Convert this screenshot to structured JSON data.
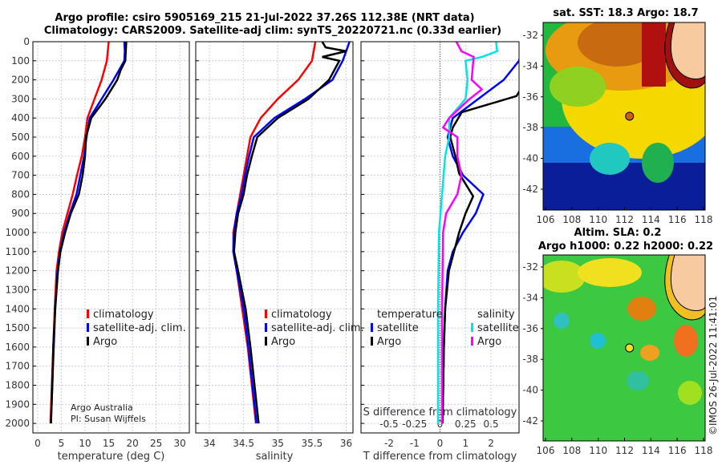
{
  "titles": {
    "line1": "Argo profile: csiro 5905169_215 21-Jul-2022 37.26S 112.38E (NRT data)",
    "line2": "Climatology: CARS2009. Satellite-adj clim: synTS_20220721.nc (0.33d earlier)",
    "sst": "sat. SST: 18.3 Argo: 18.7",
    "sla1": "Altim. SLA: 0.2",
    "sla2": "Argo h1000: 0.22 h2000: 0.22"
  },
  "credit": "Argo Australia",
  "pi": "PI: Susan Wijffels",
  "stamp": "©IMOS 26-Jul-2022 11:41:01",
  "colors": {
    "climatology": "#ff0000",
    "satellite": "#0000ff",
    "argo": "#000000",
    "s_satellite": "#00e5e5",
    "s_argo": "#ff00ff"
  },
  "chart_data": [
    {
      "type": "line",
      "xlabel": "temperature (deg C)",
      "ylabel": "",
      "xlim": [
        -1,
        32
      ],
      "ylim": [
        2050,
        0
      ],
      "xticks": [
        0,
        5,
        10,
        15,
        20,
        25,
        30
      ],
      "yticks": [
        0,
        100,
        200,
        300,
        400,
        500,
        600,
        700,
        800,
        900,
        1000,
        1100,
        1200,
        1300,
        1400,
        1500,
        1600,
        1700,
        1800,
        1900,
        2000
      ],
      "legend": [
        "climatology",
        "satellite-adj. clim.",
        "Argo"
      ],
      "legend_placement": "lower-right",
      "series": [
        {
          "name": "climatology",
          "depth": [
            0,
            100,
            200,
            300,
            400,
            500,
            600,
            700,
            800,
            900,
            1000,
            1100,
            1200,
            1400,
            1600,
            1800,
            2000
          ],
          "values": [
            15,
            14.6,
            13.5,
            12,
            10.5,
            10,
            9.3,
            8.3,
            7.4,
            6.3,
            5.2,
            4.5,
            4,
            3.6,
            3.3,
            3,
            2.7
          ]
        },
        {
          "name": "satellite-adj. clim.",
          "depth": [
            0,
            50,
            100,
            200,
            300,
            400,
            500,
            600,
            700,
            800,
            900,
            1000,
            1100,
            1200,
            1400,
            1600,
            1800,
            2000
          ],
          "values": [
            18.3,
            18.4,
            18.3,
            16,
            13.5,
            11,
            10.3,
            9.8,
            9,
            8.2,
            6.8,
            5.6,
            4.7,
            4.2,
            3.7,
            3.4,
            3.1,
            2.8
          ]
        },
        {
          "name": "Argo",
          "depth": [
            0,
            100,
            150,
            200,
            300,
            400,
            500,
            600,
            700,
            800,
            900,
            1000,
            1100,
            1200,
            1400,
            1600,
            1800,
            2000
          ],
          "values": [
            18.7,
            18.5,
            17.5,
            16.8,
            14.3,
            11.3,
            10.2,
            10,
            9.5,
            8.7,
            7,
            5.8,
            4.8,
            4.3,
            3.7,
            3.3,
            3.1,
            2.8
          ]
        }
      ]
    },
    {
      "type": "line",
      "xlabel": "salinity",
      "xlim": [
        33.8,
        36.1
      ],
      "ylim": [
        2050,
        0
      ],
      "xticks": [
        34,
        34.5,
        35,
        35.5,
        36
      ],
      "legend": [
        "climatology",
        "satellite-adj. clim.",
        "Argo"
      ],
      "legend_placement": "lower-right",
      "series": [
        {
          "name": "climatology",
          "depth": [
            0,
            100,
            200,
            300,
            400,
            500,
            600,
            700,
            800,
            900,
            1000,
            1100,
            1200,
            1400,
            1600,
            1800,
            2000
          ],
          "values": [
            35.55,
            35.5,
            35.3,
            35.0,
            34.75,
            34.6,
            34.55,
            34.5,
            34.45,
            34.4,
            34.35,
            34.35,
            34.4,
            34.48,
            34.56,
            34.62,
            34.68
          ]
        },
        {
          "name": "satellite-adj. clim.",
          "depth": [
            0,
            50,
            100,
            200,
            300,
            400,
            500,
            600,
            700,
            800,
            900,
            1000,
            1100,
            1200,
            1400,
            1600,
            1800,
            2000
          ],
          "values": [
            36.05,
            36.0,
            35.95,
            35.8,
            35.4,
            34.95,
            34.65,
            34.58,
            34.52,
            34.47,
            34.4,
            34.36,
            34.35,
            34.4,
            34.5,
            34.57,
            34.63,
            34.69
          ]
        },
        {
          "name": "Argo",
          "depth": [
            0,
            30,
            50,
            80,
            100,
            200,
            300,
            400,
            500,
            600,
            700,
            800,
            900,
            1000,
            1100,
            1200,
            1400,
            1600,
            1800,
            2000
          ],
          "values": [
            35.65,
            35.7,
            36.0,
            35.65,
            35.9,
            35.75,
            35.45,
            35.0,
            34.7,
            34.62,
            34.55,
            34.5,
            34.42,
            34.38,
            34.36,
            34.42,
            34.53,
            34.6,
            34.66,
            34.72
          ]
        }
      ]
    },
    {
      "type": "line",
      "xlabel": "T difference from climatology",
      "x2label": "S difference from climatology",
      "xlim": [
        -3.1,
        3.1
      ],
      "ylim": [
        2050,
        0
      ],
      "xticks": [
        -2,
        -1,
        0,
        1,
        2
      ],
      "x2ticks": [
        -0.5,
        -0.25,
        0,
        0.25,
        0.5
      ],
      "legend_t": {
        "title": "temperature",
        "items": [
          "satellite",
          "Argo"
        ]
      },
      "legend_s": {
        "title": "salinity",
        "items": [
          "satellite",
          "Argo"
        ]
      },
      "series": [
        {
          "name": "T satellite",
          "var": "T",
          "depth": [
            0,
            100,
            200,
            300,
            400,
            500,
            600,
            700,
            800,
            900,
            1000,
            1100,
            1200,
            1400,
            1600,
            2000
          ],
          "values": [
            3.3,
            3.1,
            2.5,
            1.5,
            0.5,
            0.3,
            0.5,
            0.9,
            1.7,
            1.4,
            0.9,
            0.5,
            0.3,
            0.2,
            0.15,
            0.1
          ]
        },
        {
          "name": "T Argo",
          "var": "T",
          "depth": [
            0,
            100,
            200,
            285,
            370,
            450,
            500,
            600,
            690,
            810,
            900,
            1000,
            1200,
            1400,
            1600,
            2000
          ],
          "values": [
            3.7,
            3.6,
            3.4,
            3.0,
            0.85,
            0.5,
            0.4,
            0.6,
            0.75,
            1.3,
            1.0,
            0.75,
            0.35,
            0.2,
            0.15,
            0.1
          ]
        },
        {
          "name": "S satellite",
          "var": "S",
          "depth": [
            0,
            50,
            80,
            100,
            200,
            300,
            400,
            500,
            600,
            800,
            1000,
            1400,
            2000
          ],
          "values": [
            0.55,
            0.56,
            0.41,
            0.25,
            0.27,
            0.25,
            0.09,
            0.09,
            0.05,
            0.02,
            -0.01,
            -0.02,
            -0.02
          ]
        },
        {
          "name": "S Argo",
          "var": "S",
          "depth": [
            0,
            50,
            80,
            200,
            250,
            300,
            400,
            450,
            500,
            600,
            700,
            800,
            900,
            1000,
            1400,
            2000
          ],
          "values": [
            0.16,
            0.21,
            0.33,
            0.31,
            0.41,
            0.29,
            0.09,
            0.03,
            0.17,
            0.17,
            0.21,
            0.17,
            0.06,
            0.03,
            0.02,
            0.02
          ]
        }
      ]
    },
    {
      "type": "heatmap",
      "title": "sat. SST: 18.3 Argo: 18.7",
      "xticks": [
        106,
        108,
        110,
        112,
        114,
        116,
        118
      ],
      "yticks": [
        -32,
        -34,
        -36,
        -38,
        -40,
        -42
      ],
      "float": {
        "lon": 112.38,
        "lat": -37.26
      }
    },
    {
      "type": "heatmap",
      "title": "Altim. SLA: 0.2",
      "xticks": [
        106,
        108,
        110,
        112,
        114,
        116,
        118
      ],
      "yticks": [
        -32,
        -34,
        -36,
        -38,
        -40,
        -42
      ],
      "float": {
        "lon": 112.38,
        "lat": -37.26
      }
    }
  ]
}
